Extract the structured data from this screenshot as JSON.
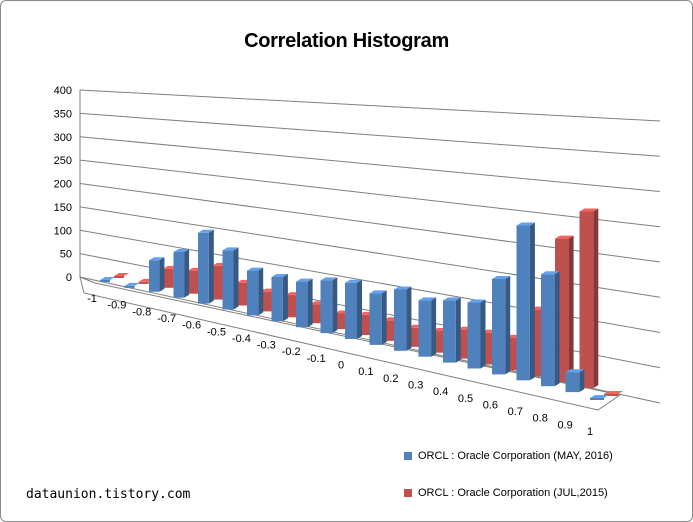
{
  "chart_data": {
    "type": "bar",
    "title": "Correlation Histogram",
    "categories": [
      "-1",
      "-0.9",
      "-0.8",
      "-0.7",
      "-0.6",
      "-0.5",
      "-0.4",
      "-0.3",
      "-0.2",
      "-0.1",
      "0",
      "0.1",
      "0.2",
      "0.3",
      "0.4",
      "0.5",
      "0.6",
      "0.7",
      "0.8",
      "0.9",
      "1"
    ],
    "series": [
      {
        "name": "ORCL : Oracle Corporation (MAY, 2016)",
        "color": "#4f81bd",
        "values": [
          0,
          0,
          100,
          140,
          210,
          170,
          125,
          120,
          120,
          135,
          140,
          125,
          145,
          130,
          140,
          145,
          205,
          325,
          230,
          40,
          0
        ]
      },
      {
        "name": "ORCL : Oracle Corporation (JUL,2015)",
        "color": "#c0504d",
        "values": [
          0,
          0,
          60,
          70,
          100,
          65,
          55,
          60,
          50,
          40,
          50,
          50,
          45,
          50,
          65,
          70,
          70,
          140,
          295,
          355,
          0
        ]
      }
    ],
    "ylim": [
      0,
      400
    ],
    "yticks": [
      0,
      50,
      100,
      150,
      200,
      250,
      300,
      350,
      400
    ],
    "grid": true,
    "legend": "bottom-right",
    "view": "3d-perspective"
  },
  "legend": {
    "series1_label": "ORCL : Oracle Corporation (MAY, 2016)",
    "series2_label": "ORCL : Oracle Corporation (JUL,2015)"
  },
  "watermark": "dataunion.tistory.com"
}
